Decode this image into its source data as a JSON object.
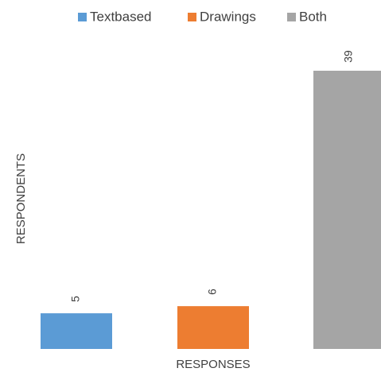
{
  "chart_data": {
    "type": "bar",
    "categories": [
      null
    ],
    "series": [
      {
        "name": "Textbased",
        "color": "#5b9bd5",
        "values": [
          5
        ]
      },
      {
        "name": "Drawings",
        "color": "#ed7d31",
        "values": [
          6
        ]
      },
      {
        "name": "Both",
        "color": "#a5a5a5",
        "values": [
          39
        ]
      }
    ],
    "xlabel": "RESPONSES",
    "ylabel": "RESPONDENTS",
    "ylim": [
      0,
      40
    ],
    "legend": "top",
    "data_labels": true
  }
}
